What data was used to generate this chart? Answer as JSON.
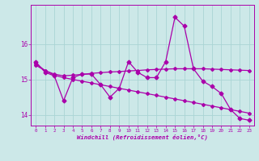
{
  "x": [
    0,
    1,
    2,
    3,
    4,
    5,
    6,
    7,
    8,
    9,
    10,
    11,
    12,
    13,
    14,
    15,
    16,
    17,
    18,
    19,
    20,
    21,
    22,
    23
  ],
  "line_jagged": [
    15.5,
    15.2,
    15.1,
    14.4,
    15.05,
    15.15,
    15.15,
    14.85,
    14.5,
    14.75,
    15.5,
    15.2,
    15.05,
    15.05,
    15.5,
    16.75,
    16.5,
    15.3,
    14.95,
    14.8,
    14.6,
    14.15,
    13.9,
    13.85
  ],
  "line_upper_flat": [
    15.45,
    15.25,
    15.15,
    15.1,
    15.12,
    15.14,
    15.17,
    15.19,
    15.21,
    15.22,
    15.24,
    15.25,
    15.27,
    15.28,
    15.29,
    15.3,
    15.3,
    15.3,
    15.3,
    15.29,
    15.28,
    15.27,
    15.26,
    15.25
  ],
  "line_lower_decline": [
    15.4,
    15.25,
    15.12,
    15.05,
    15.0,
    14.95,
    14.9,
    14.85,
    14.8,
    14.75,
    14.7,
    14.65,
    14.6,
    14.55,
    14.5,
    14.45,
    14.4,
    14.35,
    14.3,
    14.25,
    14.2,
    14.15,
    14.1,
    14.05
  ],
  "line_color": "#aa00aa",
  "bg_color": "#cce8e8",
  "grid_color": "#aad4d4",
  "xlabel": "Windchill (Refroidissement éolien,°C)",
  "ylim": [
    13.7,
    17.1
  ],
  "xlim": [
    -0.5,
    23.5
  ],
  "yticks": [
    14,
    15,
    16
  ],
  "xticks": [
    0,
    1,
    2,
    3,
    4,
    5,
    6,
    7,
    8,
    9,
    10,
    11,
    12,
    13,
    14,
    15,
    16,
    17,
    18,
    19,
    20,
    21,
    22,
    23
  ]
}
